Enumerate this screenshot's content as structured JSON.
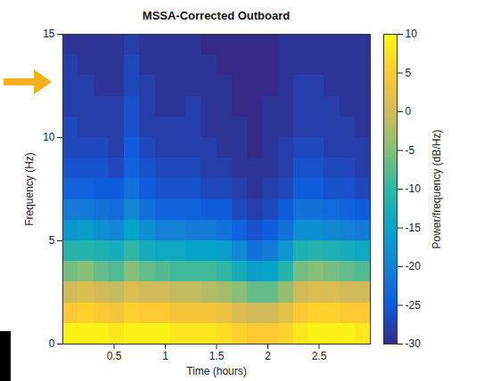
{
  "chart_data": {
    "type": "heatmap",
    "title": "MSSA-Corrected Outboard",
    "x_label": "Time (hours)",
    "y_label": "Frequency (Hz)",
    "xlim": [
      0,
      3
    ],
    "xticks": [
      0.5,
      1,
      1.5,
      2,
      2.5
    ],
    "ylim": [
      0,
      15
    ],
    "yticks": [
      0,
      5,
      10,
      15
    ],
    "color": "parula",
    "x_bins": [
      0,
      0.15,
      0.3,
      0.45,
      0.6,
      0.75,
      0.9,
      1.05,
      1.2,
      1.35,
      1.5,
      1.65,
      1.8,
      1.95,
      2.1,
      2.25,
      2.4,
      2.55,
      2.7,
      2.85,
      3
    ],
    "y_bins": [
      0,
      1,
      2,
      3,
      4,
      5,
      6,
      7,
      8,
      9,
      10,
      11,
      12,
      13,
      14,
      15
    ],
    "values": [
      [
        9,
        9,
        9,
        8,
        9,
        9,
        9,
        8,
        8,
        8,
        7,
        6,
        5,
        5,
        6,
        8,
        9,
        9,
        9,
        8
      ],
      [
        5,
        6,
        5,
        4,
        6,
        5,
        5,
        4,
        4,
        4,
        3,
        1,
        0,
        0,
        2,
        5,
        6,
        6,
        5,
        5
      ],
      [
        0,
        1,
        0,
        -1,
        1,
        0,
        0,
        -1,
        -1,
        -2,
        -3,
        -5,
        -7,
        -7,
        -4,
        0,
        1,
        1,
        0,
        0
      ],
      [
        -6,
        -5,
        -7,
        -8,
        -5,
        -7,
        -8,
        -9,
        -9,
        -9,
        -10,
        -13,
        -16,
        -15,
        -11,
        -6,
        -5,
        -6,
        -7,
        -8
      ],
      [
        -11,
        -11,
        -12,
        -13,
        -10,
        -13,
        -14,
        -14,
        -15,
        -15,
        -16,
        -19,
        -22,
        -21,
        -17,
        -12,
        -11,
        -12,
        -13,
        -14
      ],
      [
        -17,
        -16,
        -18,
        -19,
        -15,
        -18,
        -20,
        -20,
        -21,
        -21,
        -22,
        -24,
        -26,
        -25,
        -22,
        -18,
        -18,
        -19,
        -20,
        -21
      ],
      [
        -21,
        -21,
        -22,
        -23,
        -19,
        -22,
        -24,
        -24,
        -24,
        -25,
        -25,
        -27,
        -28,
        -27,
        -25,
        -22,
        -22,
        -23,
        -24,
        -25
      ],
      [
        -24,
        -24,
        -25,
        -25,
        -22,
        -25,
        -26,
        -26,
        -26,
        -27,
        -27,
        -28,
        -29,
        -28,
        -27,
        -25,
        -25,
        -26,
        -26,
        -27
      ],
      [
        -26,
        -26,
        -26,
        -27,
        -24,
        -26,
        -27,
        -27,
        -27,
        -28,
        -28,
        -29,
        -29,
        -29,
        -28,
        -26,
        -26,
        -27,
        -27,
        -28
      ],
      [
        -27,
        -27,
        -27,
        -28,
        -25,
        -27,
        -28,
        -28,
        -28,
        -28,
        -29,
        -29,
        -30,
        -29,
        -28,
        -27,
        -27,
        -28,
        -28,
        -28
      ],
      [
        -27,
        -28,
        -28,
        -28,
        -26,
        -28,
        -28,
        -28,
        -28,
        -29,
        -29,
        -29,
        -30,
        -29,
        -29,
        -28,
        -28,
        -28,
        -28,
        -29
      ],
      [
        -28,
        -28,
        -28,
        -28,
        -26,
        -28,
        -29,
        -29,
        -28,
        -29,
        -29,
        -30,
        -30,
        -29,
        -29,
        -28,
        -28,
        -28,
        -29,
        -29
      ],
      [
        -28,
        -28,
        -29,
        -29,
        -27,
        -28,
        -29,
        -29,
        -29,
        -29,
        -29,
        -30,
        -30,
        -30,
        -29,
        -28,
        -28,
        -29,
        -29,
        -29
      ],
      [
        -28,
        -29,
        -29,
        -29,
        -27,
        -29,
        -29,
        -29,
        -29,
        -29,
        -30,
        -30,
        -30,
        -30,
        -29,
        -29,
        -29,
        -29,
        -29,
        -29
      ],
      [
        -29,
        -29,
        -29,
        -29,
        -28,
        -29,
        -29,
        -29,
        -29,
        -30,
        -30,
        -30,
        -30,
        -30,
        -29,
        -29,
        -29,
        -29,
        -29,
        -29
      ]
    ],
    "colorbar": {
      "label": "Power/frequency (dB/Hz)",
      "range": [
        -30,
        10
      ],
      "ticks": [
        -30,
        -25,
        -20,
        -15,
        -10,
        -5,
        0,
        5,
        10
      ]
    }
  }
}
